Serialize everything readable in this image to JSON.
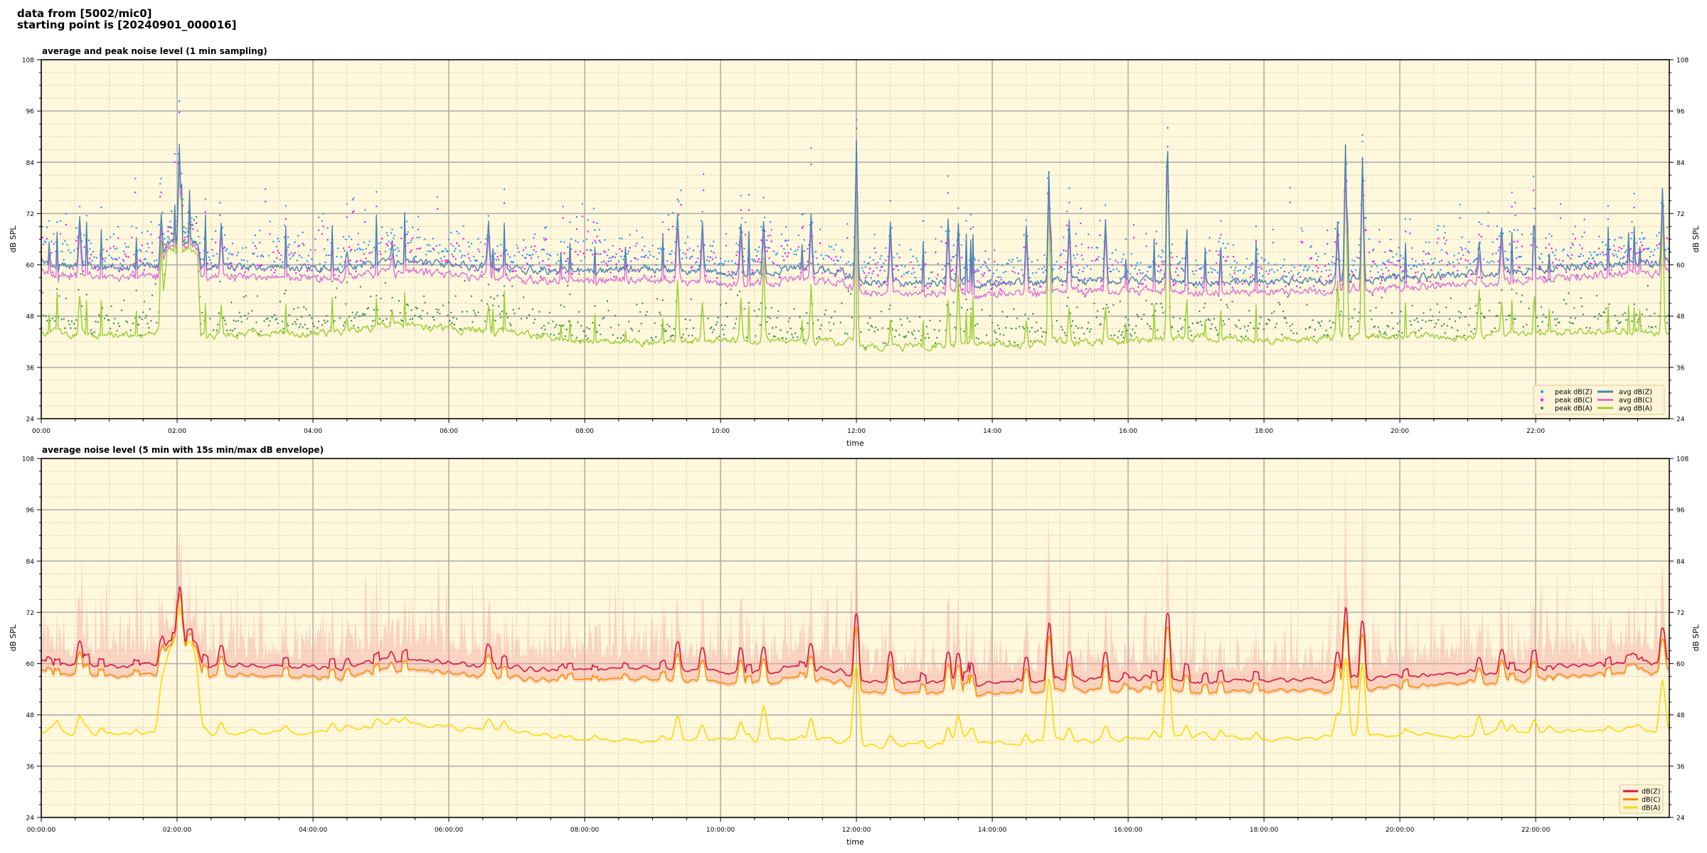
{
  "header": {
    "line1": "data from [5002/mic0]",
    "line2": "starting point is [20240901_000016]"
  },
  "chart_data": [
    {
      "type": "line+scatter",
      "title": "average and peak noise level (1 min sampling)",
      "xlabel": "time",
      "ylabel": "dB SPL",
      "ylim": [
        24,
        108
      ],
      "xlim": [
        "00:00",
        "23:58"
      ],
      "yticks": [
        24,
        36,
        48,
        60,
        72,
        84,
        96,
        108
      ],
      "xticks": [
        "00:00",
        "02:00",
        "04:00",
        "06:00",
        "08:00",
        "10:00",
        "12:00",
        "14:00",
        "16:00",
        "18:00",
        "20:00",
        "22:00"
      ],
      "grid": true,
      "legend": "lower-right",
      "series": [
        {
          "name": "peak dB(Z)",
          "kind": "scatter",
          "color": "#1e90ff"
        },
        {
          "name": "peak dB(C)",
          "kind": "scatter",
          "color": "#ff00ff"
        },
        {
          "name": "peak dB(A)",
          "kind": "scatter",
          "color": "#2e8b57"
        },
        {
          "name": "avg dB(Z)",
          "kind": "line",
          "color": "#4682b4"
        },
        {
          "name": "avg dB(C)",
          "kind": "line",
          "color": "#da70d6"
        },
        {
          "name": "avg dB(A)",
          "kind": "line",
          "color": "#9acd32"
        }
      ],
      "baseline": {
        "time": [
          "00:00",
          "01:00",
          "01:45",
          "01:51",
          "02:18",
          "02:21",
          "03:00",
          "04:00",
          "05:00",
          "05:30",
          "06:00",
          "07:00",
          "08:00",
          "09:00",
          "10:00",
          "11:00",
          "11:54",
          "12:06",
          "13:00",
          "14:00",
          "15:00",
          "16:00",
          "17:00",
          "18:00",
          "19:00",
          "20:00",
          "21:00",
          "22:00",
          "23:00",
          "23:58"
        ],
        "dBZ": [
          60,
          59.5,
          59.5,
          65,
          65,
          59.5,
          59.5,
          59,
          60,
          61,
          60,
          59,
          58.5,
          59,
          58,
          59,
          58,
          56,
          56,
          55.5,
          56,
          56.5,
          56,
          56,
          56.5,
          57,
          58,
          59,
          60,
          60.5
        ],
        "dBC": [
          57.7,
          57.2,
          57.2,
          64,
          64,
          57.2,
          57.2,
          56.7,
          57.7,
          58.7,
          57.7,
          56.7,
          56.2,
          56.5,
          55.5,
          56.5,
          55.5,
          53.5,
          53.5,
          53,
          53.5,
          54,
          53.5,
          53.5,
          54,
          54.5,
          55.7,
          56.7,
          57.7,
          58.2
        ],
        "dBA": [
          44,
          43.5,
          44,
          63,
          63,
          43.5,
          44,
          43.5,
          45.5,
          46,
          45,
          44,
          42,
          42,
          42.5,
          42,
          42,
          40.5,
          41,
          41.5,
          42,
          42,
          43,
          42.5,
          43,
          43.5,
          43.5,
          44,
          44.5,
          44
        ]
      },
      "events": [
        {
          "time": "00:34",
          "dBZ": 70,
          "dBA": 53
        },
        {
          "time": "01:46",
          "dBZ": 71,
          "dBA": 66
        },
        {
          "time": "02:02",
          "dBZ": 89,
          "dBA": 86
        },
        {
          "time": "02:39",
          "dBZ": 70,
          "dBA": 50
        },
        {
          "time": "04:30",
          "dBZ": 63,
          "dBA": 48
        },
        {
          "time": "05:10",
          "dBZ": 65,
          "dBA": 50
        },
        {
          "time": "06:35",
          "dBZ": 69,
          "dBA": 50
        },
        {
          "time": "09:22",
          "dBZ": 72,
          "dBA": 56
        },
        {
          "time": "09:44",
          "dBZ": 70,
          "dBA": 52
        },
        {
          "time": "10:18",
          "dBZ": 70,
          "dBA": 52
        },
        {
          "time": "10:38",
          "dBZ": 70,
          "dBA": 62
        },
        {
          "time": "11:20",
          "dBZ": 72,
          "dBA": 56
        },
        {
          "time": "12:00",
          "dBZ": 89,
          "dBA": 87
        },
        {
          "time": "12:30",
          "dBZ": 69,
          "dBA": 48
        },
        {
          "time": "13:21",
          "dBZ": 70,
          "dBA": 52
        },
        {
          "time": "13:30",
          "dBZ": 69,
          "dBA": 57
        },
        {
          "time": "14:30",
          "dBZ": 69,
          "dBA": 48
        },
        {
          "time": "14:50",
          "dBZ": 82,
          "dBA": 78
        },
        {
          "time": "15:08",
          "dBZ": 70,
          "dBA": 50
        },
        {
          "time": "15:40",
          "dBZ": 70,
          "dBA": 50
        },
        {
          "time": "16:35",
          "dBZ": 87,
          "dBA": 86
        },
        {
          "time": "19:05",
          "dBZ": 70,
          "dBA": 56
        },
        {
          "time": "19:12",
          "dBZ": 89,
          "dBA": 85
        },
        {
          "time": "19:27",
          "dBZ": 86,
          "dBA": 85
        },
        {
          "time": "21:10",
          "dBZ": 65,
          "dBA": 54
        },
        {
          "time": "21:30",
          "dBZ": 68,
          "dBA": 52
        },
        {
          "time": "23:52",
          "dBZ": 78,
          "dBA": 74
        }
      ]
    },
    {
      "type": "line+envelope",
      "title": "average noise level (5 min with 15s min/max dB envelope)",
      "xlabel": "time",
      "ylabel": "dB SPL",
      "ylim": [
        24,
        108
      ],
      "xlim": [
        "00:00:00",
        "23:58:00"
      ],
      "yticks": [
        24,
        36,
        48,
        60,
        72,
        84,
        96,
        108
      ],
      "xticks": [
        "00:00:00",
        "02:00:00",
        "04:00:00",
        "06:00:00",
        "08:00:00",
        "10:00:00",
        "12:00:00",
        "14:00:00",
        "16:00:00",
        "18:00:00",
        "20:00:00",
        "22:00:00"
      ],
      "grid": true,
      "legend": "lower-right",
      "envelope_color": "#f4a6a0",
      "series": [
        {
          "name": "dB(Z)",
          "kind": "line",
          "color": "#dc143c"
        },
        {
          "name": "dB(C)",
          "kind": "line",
          "color": "#ff8c00"
        },
        {
          "name": "dB(A)",
          "kind": "line",
          "color": "#ffd700"
        }
      ]
    }
  ]
}
